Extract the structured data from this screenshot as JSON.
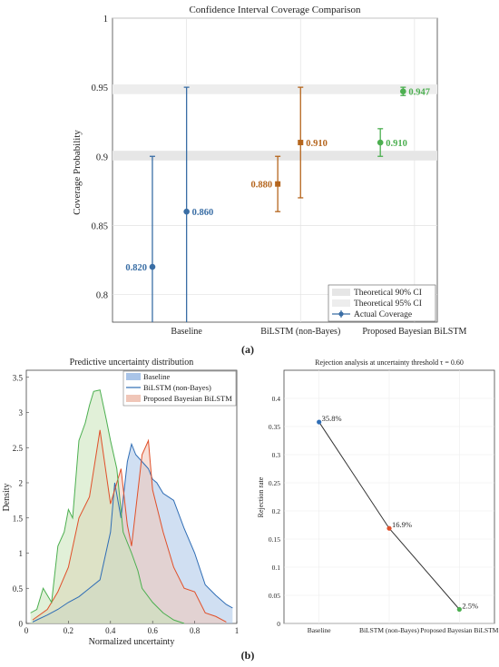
{
  "figure": {
    "label_a": "(a)",
    "label_b": "(b)"
  },
  "chart_data": [
    {
      "id": "coverage",
      "type": "scatter",
      "title": "Confidence Interval Coverage Comparison",
      "ylabel": "Coverage Probability",
      "xlabel": "",
      "categories": [
        "Baseline",
        "BiLSTM (non-Bayes)",
        "Proposed Bayesian BiLSTM"
      ],
      "ylim": [
        0.78,
        1.0
      ],
      "yticks": [
        0.8,
        0.85,
        0.9,
        0.95,
        1
      ],
      "ytick_labels": [
        "0.8",
        "0.85",
        "0.9",
        "0.95",
        "1"
      ],
      "grid": true,
      "bands": [
        {
          "name": "Theoretical 90% CI",
          "y0": 0.897,
          "y1": 0.904,
          "color": "#e6e6e6"
        },
        {
          "name": "Theoretical 95% CI",
          "y0": 0.945,
          "y1": 0.952,
          "color": "#ededed"
        }
      ],
      "points": [
        {
          "x": 0.7,
          "y": 0.82,
          "low": 0.78,
          "high": 0.9,
          "label": "0.820",
          "color": "#3a6ea5"
        },
        {
          "x": 1.0,
          "y": 0.86,
          "low": 0.78,
          "high": 0.95,
          "label": "0.860",
          "color": "#3a6ea5"
        },
        {
          "x": 1.8,
          "y": 0.88,
          "low": 0.86,
          "high": 0.9,
          "label": "0.880",
          "color": "#b5651d",
          "label_side": "left"
        },
        {
          "x": 2.0,
          "y": 0.91,
          "low": 0.87,
          "high": 0.95,
          "label": "0.910",
          "color": "#b5651d"
        },
        {
          "x": 2.7,
          "y": 0.91,
          "low": 0.9,
          "high": 0.92,
          "label": "0.910",
          "color": "#4caf50"
        },
        {
          "x": 2.9,
          "y": 0.947,
          "low": 0.944,
          "high": 0.95,
          "label": "0.947",
          "color": "#4caf50"
        }
      ],
      "legend": {
        "position": "bottom-right",
        "entries": [
          "Theoretical 90% CI",
          "Theoretical 95% CI",
          "Actual Coverage"
        ]
      }
    },
    {
      "id": "density",
      "type": "area",
      "title": "Predictive uncertainty distribution",
      "xlabel": "Normalized uncertainty",
      "ylabel": "Density",
      "xlim": [
        0,
        1
      ],
      "ylim": [
        0,
        3.6
      ],
      "xticks": [
        0,
        0.2,
        0.4,
        0.6,
        0.8,
        1
      ],
      "xtick_labels": [
        "0",
        "0.2",
        "0.4",
        "0.6",
        "0.8",
        "1"
      ],
      "yticks": [
        0,
        0.5,
        1,
        1.5,
        2,
        2.5,
        3,
        3.5
      ],
      "ytick_labels": [
        "0",
        "0.5",
        "1",
        "1.5",
        "2",
        "2.5",
        "3",
        "3.5"
      ],
      "legend": {
        "position": "top-right"
      },
      "series": [
        {
          "name": "Baseline",
          "color": "#2f6db5",
          "fill": "#a9c4e8",
          "x": [
            0.03,
            0.05,
            0.1,
            0.15,
            0.2,
            0.25,
            0.3,
            0.35,
            0.4,
            0.42,
            0.45,
            0.48,
            0.5,
            0.52,
            0.55,
            0.58,
            0.6,
            0.62,
            0.65,
            0.7,
            0.75,
            0.8,
            0.85,
            0.9,
            0.95,
            0.98
          ],
          "y": [
            0.02,
            0.05,
            0.12,
            0.2,
            0.3,
            0.38,
            0.5,
            0.62,
            1.3,
            2.0,
            1.5,
            2.3,
            2.55,
            2.4,
            2.3,
            2.2,
            2.05,
            2.0,
            1.85,
            1.75,
            1.35,
            1.0,
            0.55,
            0.4,
            0.27,
            0.22
          ]
        },
        {
          "name": "BiLSTM (non-Bayes)",
          "color": "#e0502a",
          "fill": "#f0c6b8",
          "x": [
            0.03,
            0.1,
            0.15,
            0.2,
            0.25,
            0.3,
            0.35,
            0.4,
            0.45,
            0.48,
            0.5,
            0.55,
            0.58,
            0.6,
            0.65,
            0.7,
            0.75,
            0.8,
            0.85,
            0.9,
            0.95
          ],
          "y": [
            0.05,
            0.2,
            0.45,
            0.8,
            1.5,
            1.8,
            2.75,
            1.7,
            2.2,
            1.4,
            1.1,
            2.4,
            2.6,
            1.9,
            1.3,
            0.8,
            0.5,
            0.45,
            0.15,
            0.1,
            0.02
          ]
        },
        {
          "name": "Proposed Bayesian BiLSTM",
          "color": "#4caf50",
          "fill": "#c8e3b8",
          "x": [
            0.02,
            0.05,
            0.08,
            0.12,
            0.15,
            0.18,
            0.2,
            0.22,
            0.25,
            0.28,
            0.3,
            0.32,
            0.35,
            0.38,
            0.4,
            0.43,
            0.46,
            0.5,
            0.53,
            0.55,
            0.6,
            0.65,
            0.7,
            0.75
          ],
          "y": [
            0.15,
            0.2,
            0.5,
            0.3,
            1.1,
            1.3,
            1.62,
            1.5,
            2.6,
            2.85,
            3.1,
            3.3,
            3.32,
            2.9,
            2.6,
            2.2,
            1.3,
            1.0,
            0.75,
            0.5,
            0.3,
            0.15,
            0.05,
            0.0
          ]
        }
      ]
    },
    {
      "id": "rejection",
      "type": "line",
      "title": "Rejection analysis at uncertainty threshold τ = 0.60",
      "xlabel": "",
      "ylabel": "Rejection rate",
      "categories": [
        "Baseline",
        "BiLSTM (non-Bayes)",
        "Proposed Bayesian BiLSTM"
      ],
      "values": [
        0.358,
        0.169,
        0.025
      ],
      "labels": [
        "35.8%",
        "16.9%",
        "2.5%"
      ],
      "colors": [
        "#2f6db5",
        "#e0502a",
        "#4caf50"
      ],
      "ylim": [
        0,
        0.45
      ],
      "yticks": [
        0,
        0.05,
        0.1,
        0.15,
        0.2,
        0.25,
        0.3,
        0.35,
        0.4
      ],
      "ytick_labels": [
        "0",
        "0.05",
        "0.1",
        "0.15",
        "0.2",
        "0.25",
        "0.3",
        "0.35",
        "0.4"
      ],
      "grid": true
    }
  ]
}
